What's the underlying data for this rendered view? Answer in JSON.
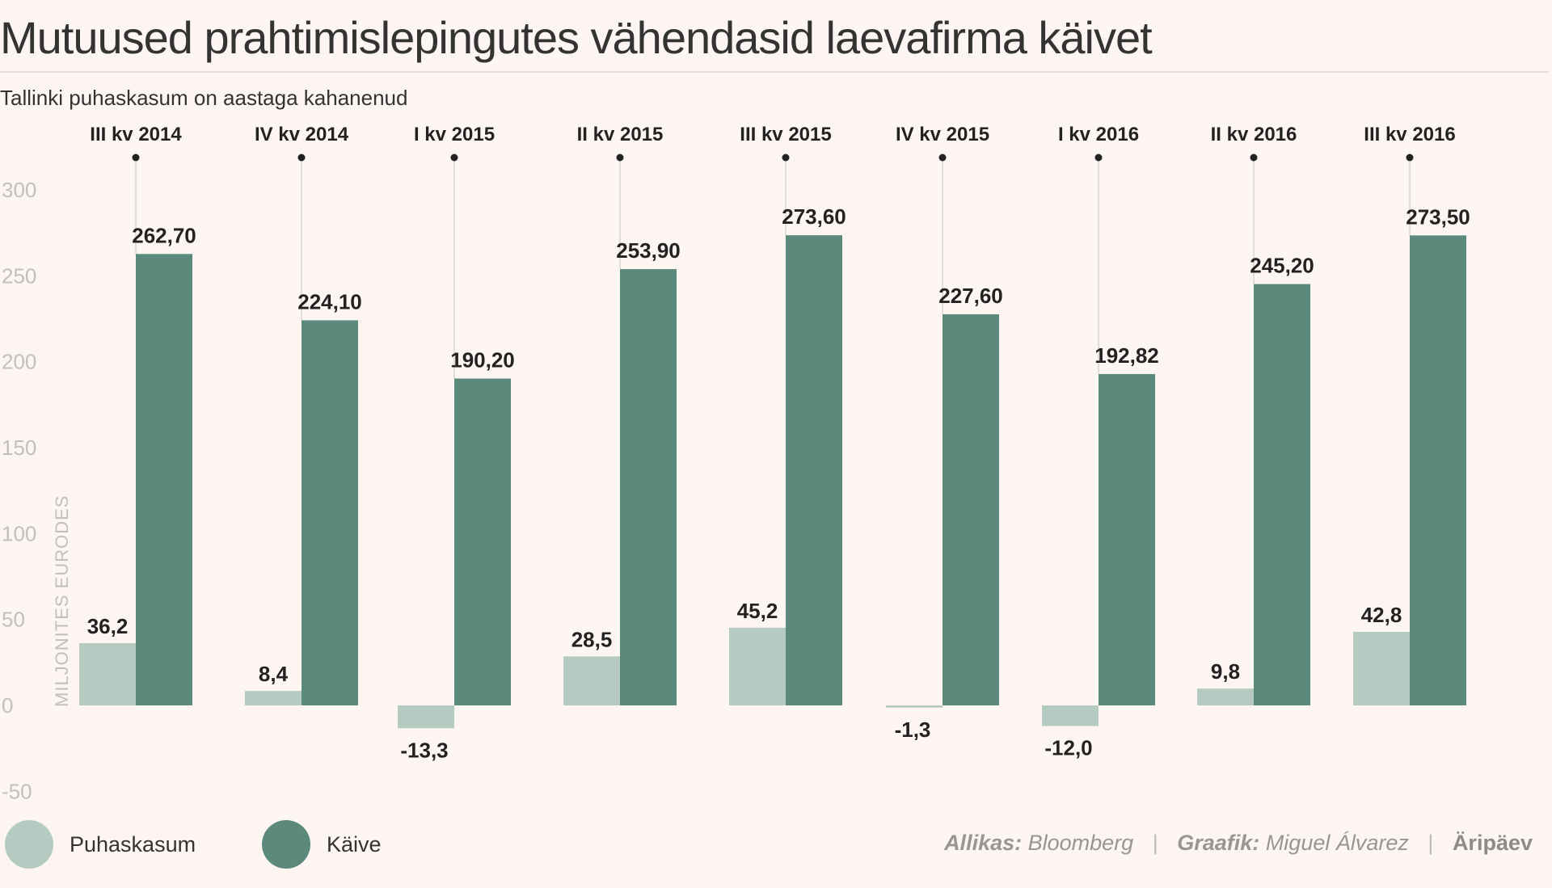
{
  "title": "Mutuused prahtimislepingutes vähendasid laevafirma käivet",
  "subtitle": "Tallinki puhaskasum on aastaga kahanenud",
  "legend": [
    {
      "label": "Puhaskasum",
      "color": "#b5cbc2"
    },
    {
      "label": "Käive",
      "color": "#5b8a7c"
    }
  ],
  "footer": {
    "source_label": "Allikas:",
    "source": "Bloomberg",
    "graphic_label": "Graafik:",
    "graphic": "Miguel Álvarez",
    "brand": "Äripäev"
  },
  "chart_data": {
    "type": "bar",
    "title": "Mutuused prahtimislepingutes vähendasid laevafirma käivet",
    "ylabel": "MILJONITES EURODES",
    "ylim": [
      -50,
      300
    ],
    "yticks": [
      300,
      250,
      200,
      150,
      100,
      50,
      0,
      -50
    ],
    "categories": [
      "III kv 2014",
      "IV kv 2014",
      "I kv 2015",
      "II kv 2015",
      "III kv 2015",
      "IV kv 2015",
      "I kv 2016",
      "II kv 2016",
      "III kv 2016"
    ],
    "series": [
      {
        "name": "Puhaskasum",
        "color": "#b5cbc2",
        "values": [
          36.2,
          8.4,
          -13.3,
          28.5,
          45.2,
          -1.3,
          -12.0,
          9.8,
          42.8
        ],
        "labels": [
          "36,2",
          "8,4",
          "-13,3",
          "28,5",
          "45,2",
          "-1,3",
          "-12,0",
          "9,8",
          "42,8"
        ]
      },
      {
        "name": "Käive",
        "color": "#5b8a7c",
        "values": [
          262.7,
          224.1,
          190.2,
          253.9,
          273.6,
          227.6,
          192.82,
          245.2,
          273.5
        ],
        "labels": [
          "262,70",
          "224,10",
          "190,20",
          "253,90",
          "273,60",
          "227,60",
          "192,82",
          "245,20",
          "273,50"
        ]
      }
    ],
    "grid": false,
    "legend_position": "bottom-left"
  }
}
